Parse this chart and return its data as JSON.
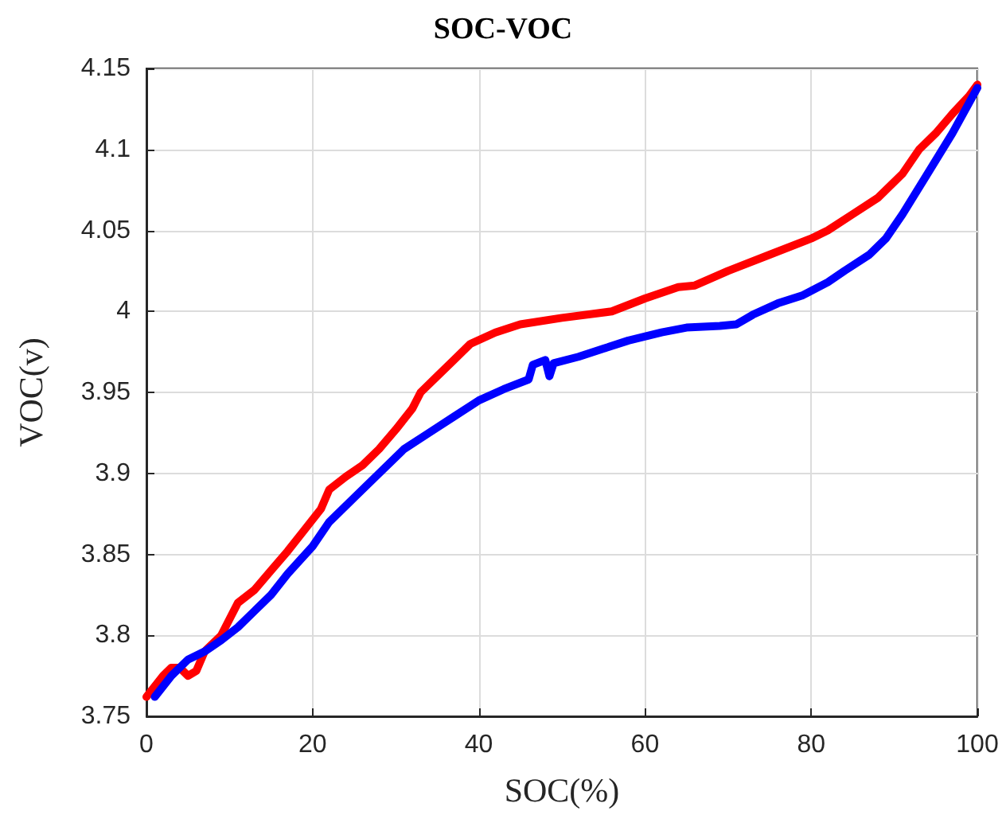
{
  "chart_data": {
    "type": "line",
    "title": "SOC-VOC",
    "xlabel": "SOC(%)",
    "ylabel": "VOC(v)",
    "xlim": [
      0,
      100
    ],
    "xticks": [
      0,
      20,
      40,
      60,
      80,
      100
    ],
    "ylim": [
      3.75,
      4.15
    ],
    "yticks": [
      3.75,
      3.8,
      3.85,
      3.9,
      3.95,
      4,
      4.05,
      4.1,
      4.15
    ],
    "grid": true,
    "marker": "none",
    "line_style": "solid",
    "series": [
      {
        "color": "#ff0000",
        "x": [
          0,
          2,
          3,
          4,
          5,
          6,
          7,
          9,
          11,
          13,
          15,
          17,
          19,
          21,
          22,
          24,
          26,
          28,
          30,
          32,
          33,
          35,
          37,
          39,
          42,
          45,
          50,
          56,
          60,
          64,
          66,
          70,
          75,
          80,
          82,
          85,
          88,
          91,
          93,
          95,
          97,
          99,
          100
        ],
        "values": [
          3.762,
          3.775,
          3.78,
          3.78,
          3.775,
          3.778,
          3.79,
          3.8,
          3.82,
          3.828,
          3.84,
          3.852,
          3.865,
          3.878,
          3.89,
          3.898,
          3.905,
          3.915,
          3.927,
          3.94,
          3.95,
          3.96,
          3.97,
          3.98,
          3.987,
          3.992,
          3.996,
          4.0,
          4.008,
          4.015,
          4.016,
          4.025,
          4.035,
          4.045,
          4.05,
          4.06,
          4.07,
          4.085,
          4.1,
          4.11,
          4.122,
          4.133,
          4.14
        ]
      },
      {
        "color": "#0000ff",
        "x": [
          1,
          3,
          5,
          7,
          9,
          11,
          13,
          15,
          17,
          20,
          22,
          25,
          28,
          31,
          34,
          37,
          40,
          43,
          46,
          46.5,
          48,
          48.5,
          49,
          52,
          55,
          58,
          62,
          65,
          69,
          71,
          73,
          76,
          79,
          82,
          84,
          87,
          89,
          91,
          94,
          97,
          100
        ],
        "values": [
          3.762,
          3.775,
          3.785,
          3.79,
          3.797,
          3.805,
          3.815,
          3.825,
          3.838,
          3.855,
          3.87,
          3.885,
          3.9,
          3.915,
          3.925,
          3.935,
          3.945,
          3.952,
          3.958,
          3.967,
          3.97,
          3.96,
          3.968,
          3.972,
          3.977,
          3.982,
          3.987,
          3.99,
          3.991,
          3.992,
          3.998,
          4.005,
          4.01,
          4.018,
          4.025,
          4.035,
          4.045,
          4.06,
          4.085,
          4.11,
          4.138
        ]
      }
    ]
  }
}
